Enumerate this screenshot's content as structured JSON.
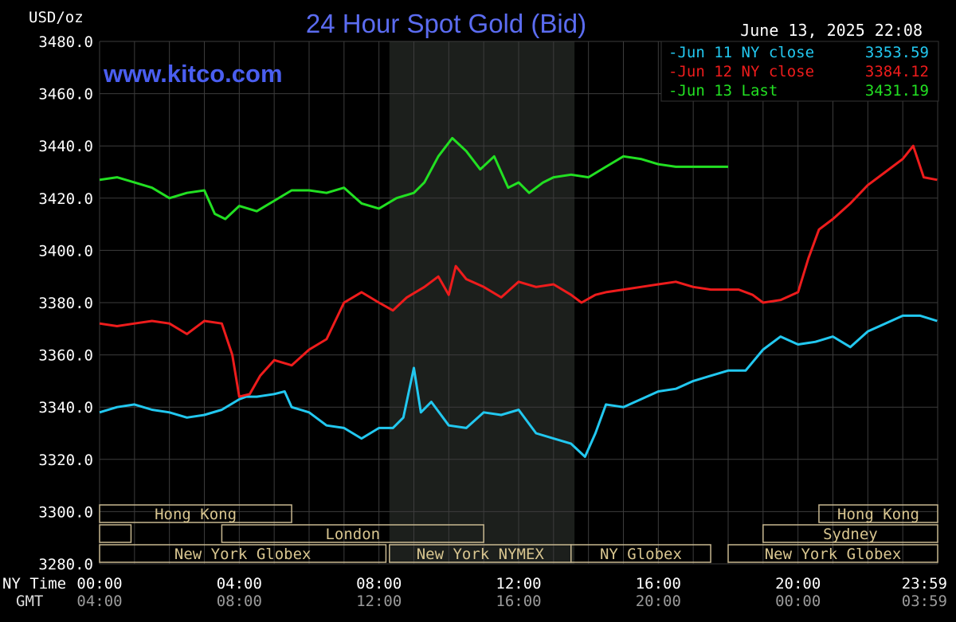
{
  "chart_data": {
    "type": "line",
    "title": "24 Hour Spot Gold (Bid)",
    "website": "www.kitco.com",
    "timestamp": "June 13, 2025 22:08",
    "y_unit": "USD/oz",
    "ylim": [
      3280,
      3480
    ],
    "y_ticks": [
      "3480.0",
      "3460.0",
      "3440.0",
      "3420.0",
      "3400.0",
      "3380.0",
      "3360.0",
      "3340.0",
      "3320.0",
      "3300.0",
      "3280.0"
    ],
    "y_tick_values": [
      3480,
      3460,
      3440,
      3420,
      3400,
      3380,
      3360,
      3340,
      3320,
      3300,
      3280
    ],
    "x_label_primary": "NY Time",
    "x_label_secondary": "GMT",
    "xlim": [
      0,
      24
    ],
    "x_ticks": [
      0,
      4,
      8,
      12,
      16,
      20,
      23.983
    ],
    "x_tick_labels_ny": [
      "00:00",
      "04:00",
      "08:00",
      "12:00",
      "16:00",
      "20:00",
      "23:59"
    ],
    "x_tick_labels_gmt": [
      "04:00",
      "08:00",
      "12:00",
      "16:00",
      "20:00",
      "00:00",
      "03:59"
    ],
    "grid": true,
    "legend_position": "top-right",
    "shaded_session": {
      "start": 8.3,
      "end": 13.6
    },
    "series": [
      {
        "name": "Jun 11 NY close",
        "legend_value": "3353.59",
        "color": "#22c8f0",
        "x": [
          0,
          0.5,
          1,
          1.5,
          2,
          2.5,
          3,
          3.5,
          4,
          4.2,
          4.5,
          5,
          5.3,
          5.5,
          6,
          6.5,
          7,
          7.5,
          8,
          8.4,
          8.7,
          9.0,
          9.2,
          9.5,
          10,
          10.5,
          11,
          11.5,
          12,
          12.5,
          13,
          13.5,
          13.9,
          14.2,
          14.5,
          15,
          15.5,
          16,
          16.5,
          17,
          17.5,
          18,
          18.2,
          18.5,
          19,
          19.5,
          20,
          20.5,
          21,
          21.5,
          22,
          22.5,
          23,
          23.5,
          23.983
        ],
        "y": [
          3338,
          3340,
          3341,
          3339,
          3338,
          3336,
          3337,
          3339,
          3343,
          3344,
          3344,
          3345,
          3346,
          3340,
          3338,
          3333,
          3332,
          3328,
          3332,
          3332,
          3336,
          3355,
          3338,
          3342,
          3333,
          3332,
          3338,
          3337,
          3339,
          3330,
          3328,
          3326,
          3321,
          3330,
          3341,
          3340,
          3343,
          3346,
          3347,
          3350,
          3352,
          3354,
          3354,
          3354,
          3362,
          3367,
          3364,
          3365,
          3367,
          3363,
          3369,
          3372,
          3375,
          3375,
          3373
        ]
      },
      {
        "name": "Jun 12 NY close",
        "legend_value": "3384.12",
        "color": "#ee1c1c",
        "x": [
          0,
          0.5,
          1,
          1.5,
          2,
          2.5,
          3,
          3.5,
          3.8,
          4,
          4.3,
          4.6,
          5,
          5.5,
          6,
          6.5,
          7,
          7.5,
          8,
          8.4,
          8.8,
          9.3,
          9.7,
          10.0,
          10.2,
          10.5,
          11,
          11.5,
          12,
          12.5,
          13,
          13.5,
          13.8,
          14.2,
          14.5,
          15,
          15.5,
          16,
          16.5,
          17,
          17.5,
          18,
          18.3,
          18.7,
          19,
          19.5,
          20,
          20.3,
          20.6,
          21,
          21.5,
          22,
          22.5,
          23,
          23.3,
          23.6,
          23.983
        ],
        "y": [
          3372,
          3371,
          3372,
          3373,
          3372,
          3368,
          3373,
          3372,
          3360,
          3344,
          3345,
          3352,
          3358,
          3356,
          3362,
          3366,
          3380,
          3384,
          3380,
          3377,
          3382,
          3386,
          3390,
          3383,
          3394,
          3389,
          3386,
          3382,
          3388,
          3386,
          3387,
          3383,
          3380,
          3383,
          3384,
          3385,
          3386,
          3387,
          3388,
          3386,
          3385,
          3385,
          3385,
          3383,
          3380,
          3381,
          3384,
          3397,
          3408,
          3412,
          3418,
          3425,
          3430,
          3435,
          3440,
          3428,
          3427
        ]
      },
      {
        "name": "Jun 13 Last",
        "legend_value": "3431.19",
        "color": "#22e022",
        "x": [
          0,
          0.5,
          1,
          1.5,
          2,
          2.5,
          3,
          3.3,
          3.6,
          4,
          4.5,
          5,
          5.5,
          6,
          6.5,
          7,
          7.5,
          8,
          8.5,
          9,
          9.3,
          9.7,
          10.1,
          10.5,
          10.9,
          11.3,
          11.7,
          12.0,
          12.3,
          12.7,
          13,
          13.5,
          14,
          14.5,
          15,
          15.5,
          16,
          16.5,
          17,
          17.5,
          18.0
        ],
        "y": [
          3427,
          3428,
          3426,
          3424,
          3420,
          3422,
          3423,
          3414,
          3412,
          3417,
          3415,
          3419,
          3423,
          3423,
          3422,
          3424,
          3418,
          3416,
          3420,
          3422,
          3426,
          3436,
          3443,
          3438,
          3431,
          3436,
          3424,
          3426,
          3422,
          3426,
          3428,
          3429,
          3428,
          3432,
          3436,
          3435,
          3433,
          3432,
          3432,
          3432,
          3432
        ]
      }
    ],
    "market_sessions": [
      {
        "label": "Hong Kong",
        "start": 0,
        "end": 5.5,
        "row": 0
      },
      {
        "label": "Hong Kong",
        "start": 20.6,
        "end": 24,
        "row": 0
      },
      {
        "label": "",
        "start": 0,
        "end": 0.9,
        "row": 1
      },
      {
        "label": "London",
        "start": 3.5,
        "end": 11.0,
        "row": 1
      },
      {
        "label": "Sydney",
        "start": 19.0,
        "end": 24,
        "row": 1
      },
      {
        "label": "New York Globex",
        "start": 0,
        "end": 8.2,
        "row": 2
      },
      {
        "label": "New York NYMEX",
        "start": 8.3,
        "end": 13.5,
        "row": 2
      },
      {
        "label": "NY Globex",
        "start": 13.5,
        "end": 17.5,
        "row": 2
      },
      {
        "label": "New York Globex",
        "start": 18.0,
        "end": 24,
        "row": 2
      }
    ]
  }
}
